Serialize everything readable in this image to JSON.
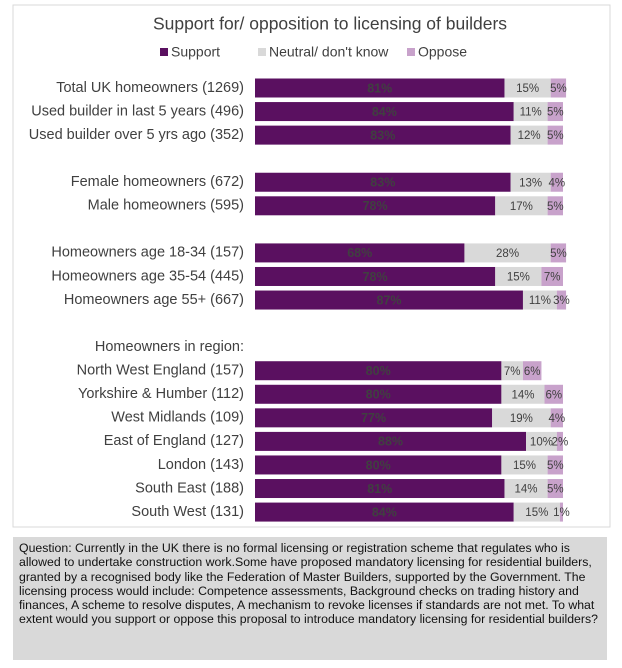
{
  "chart_data": {
    "type": "stacked_barh",
    "title": "Support for/ opposition to licensing of builders",
    "categories": [
      "Total UK homeowners (1269)",
      "Used builder in last 5 years (496)",
      "Used builder over 5 yrs ago (352)",
      null,
      "Female homeowners (672)",
      "Male homeowners (595)",
      null,
      "Homeowners age 18-34 (157)",
      "Homeowners age 35-54 (445)",
      "Homeowners age 55+ (667)",
      null,
      "Homeowners in region:",
      "North West England (157)",
      "Yorkshire & Humber (112)",
      "West Midlands (109)",
      "East of England (127)",
      "London (143)",
      "South East (188)",
      "South West (131)"
    ],
    "xlim": [
      0,
      100
    ],
    "series": [
      {
        "name": "Support",
        "color": "#5a1060",
        "values": [
          81,
          84,
          83,
          null,
          83,
          78,
          null,
          68,
          78,
          87,
          null,
          null,
          80,
          80,
          77,
          88,
          80,
          81,
          84
        ],
        "value_labels": [
          "81%",
          "84%",
          "83%",
          null,
          "83%",
          "78%",
          null,
          "68%",
          "78%",
          "87%",
          null,
          null,
          "80%",
          "80%",
          "77%",
          "88%",
          "80%",
          "81%",
          "84%"
        ]
      },
      {
        "name": "Neutral/ don't know",
        "color": "#d9d9d9",
        "values": [
          15,
          11,
          12,
          null,
          13,
          17,
          null,
          28,
          15,
          11,
          null,
          null,
          7,
          14,
          19,
          10,
          15,
          14,
          15
        ],
        "value_labels": [
          "15%",
          "11%",
          "12%",
          null,
          "13%",
          "17%",
          null,
          "28%",
          "15%",
          "11%",
          null,
          null,
          "7%",
          "14%",
          "19%",
          "10%",
          "15%",
          "14%",
          "15%"
        ]
      },
      {
        "name": "Oppose",
        "color": "#c8a2cb",
        "values": [
          5,
          5,
          5,
          null,
          4,
          5,
          null,
          5,
          7,
          3,
          null,
          null,
          6,
          6,
          4,
          2,
          5,
          5,
          1
        ],
        "value_labels": [
          "5%",
          "5%",
          "5%",
          null,
          "4%",
          "5%",
          null,
          "5%",
          "7%",
          "3%",
          null,
          null,
          "6%",
          "6%",
          "4%",
          "2%",
          "5%",
          "5%",
          "1%"
        ]
      }
    ],
    "note": "Question: Currently in the UK there is no formal licensing or registration scheme that regulates who is allowed to undertake construction work.Some have proposed mandatory licensing for residential builders, granted by a recognised body like the Federation of Master Builders, supported by the Government. The licensing process would include: Competence assessments, Background checks on trading history and finances, A scheme to resolve disputes, A mechanism to revoke licenses if standards are not met. To what extent would you support or oppose this proposal to introduce mandatory licensing for residential builders?"
  }
}
